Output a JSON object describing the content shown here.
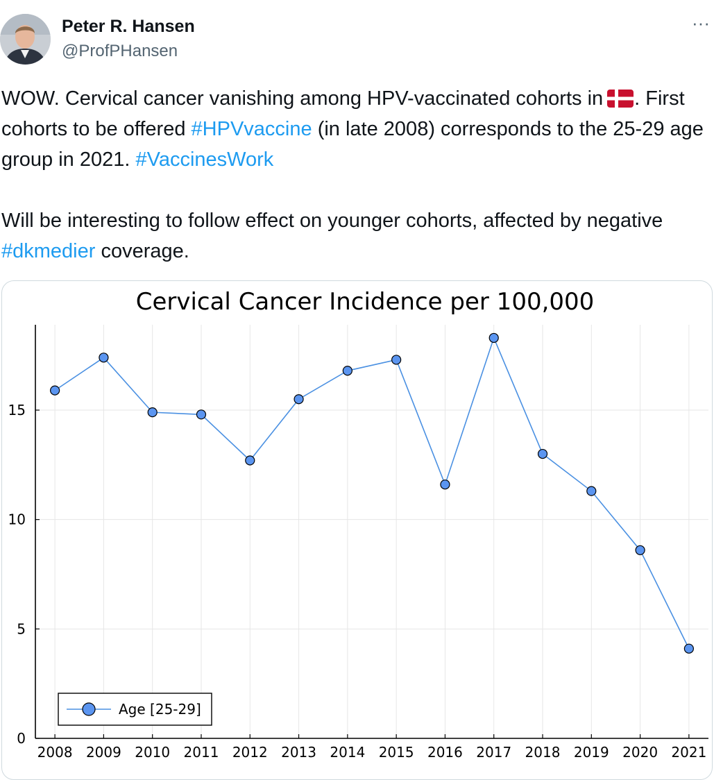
{
  "author": {
    "name": "Peter R. Hansen",
    "handle": "@ProfPHansen",
    "avatar_icon": "profile-photo"
  },
  "more_icon": "ellipsis-icon",
  "more_label": "···",
  "tweet": {
    "p1_text_a": "WOW. Cervical cancer vanishing among HPV-vaccinated cohorts in",
    "flag_icon": "denmark-flag-icon",
    "p1_text_b": ".",
    "p1_text_c": "First cohorts to be offered",
    "hashtag_1": "#HPVvaccine",
    "p1_text_d": "(in late 2008) corresponds to the 25-29 age group in 2021.",
    "hashtag_2": "#VaccinesWork",
    "p2_text_a": "Will be interesting to follow effect on younger cohorts, affected by negative",
    "hashtag_3": "#dkmedier",
    "p2_text_b": "coverage."
  },
  "colors": {
    "hashtag": "#1d9bf0",
    "series_line": "#4a90e2",
    "series_marker": "#5b95f0"
  },
  "chart_data": {
    "type": "line",
    "title": "Cervical Cancer Incidence per 100,000",
    "xlabel": "",
    "ylabel": "",
    "x": [
      2008,
      2009,
      2010,
      2011,
      2012,
      2013,
      2014,
      2015,
      2016,
      2017,
      2018,
      2019,
      2020,
      2021
    ],
    "series": [
      {
        "name": "Age [25-29]",
        "values": [
          15.9,
          17.4,
          14.9,
          14.8,
          12.7,
          15.5,
          16.8,
          17.3,
          11.6,
          18.3,
          13.0,
          11.3,
          8.6,
          4.1
        ]
      }
    ],
    "yticks": [
      0,
      5,
      10,
      15
    ],
    "ylim": [
      0,
      18.9
    ],
    "grid": true,
    "legend_position": "bottom-left"
  }
}
